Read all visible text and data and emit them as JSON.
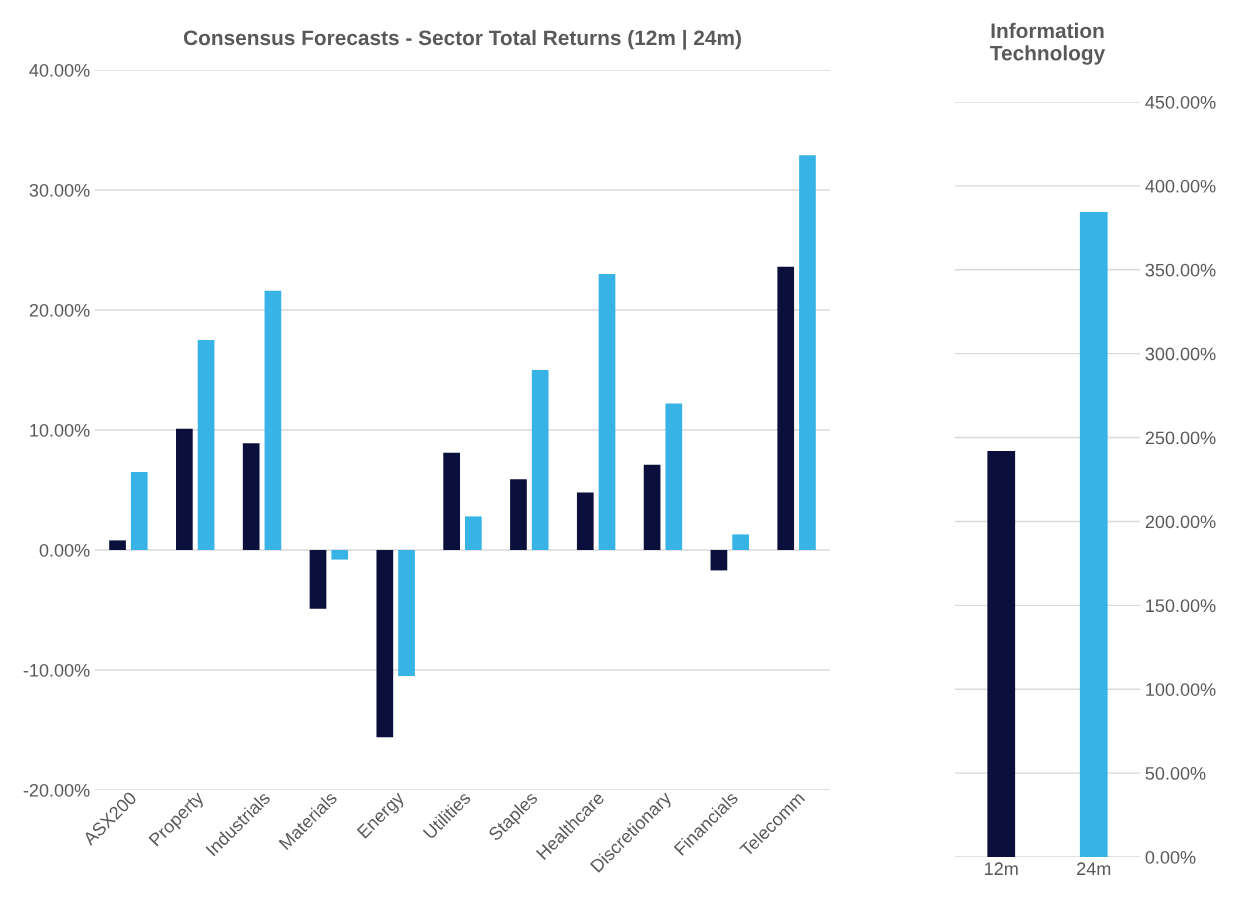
{
  "chart_data": [
    {
      "type": "bar",
      "title": "Consensus Forecasts - Sector Total Returns (12m | 24m)",
      "categories": [
        "ASX200",
        "Property",
        "Industrials",
        "Materials",
        "Energy",
        "Utilities",
        "Staples",
        "Healthcare",
        "Discretionary",
        "Financials",
        "Telecomm"
      ],
      "series": [
        {
          "color": "#0a0f3c",
          "values": [
            0.8,
            10.1,
            8.9,
            -4.9,
            -15.6,
            8.1,
            5.9,
            4.8,
            7.1,
            -1.7,
            23.6
          ]
        },
        {
          "color": "#38b3e6",
          "values": [
            6.5,
            17.5,
            21.6,
            -0.8,
            -10.5,
            2.8,
            15.0,
            23.0,
            12.2,
            1.3,
            32.9
          ]
        }
      ],
      "ylim": [
        -20,
        40
      ],
      "yticks": [
        {
          "value": -20,
          "label": "-20.00%"
        },
        {
          "value": -10,
          "label": "-10.00%"
        },
        {
          "value": 0,
          "label": "0.00%"
        },
        {
          "value": 10,
          "label": "10.00%"
        },
        {
          "value": 20,
          "label": "20.00%"
        },
        {
          "value": 30,
          "label": "30.00%"
        },
        {
          "value": 40,
          "label": "40.00%"
        }
      ],
      "grid": "y",
      "legend": false
    },
    {
      "type": "bar",
      "title": "Information\nTechnology",
      "categories": [
        "12m",
        "24m"
      ],
      "values": [
        242,
        384.5
      ],
      "colors": [
        "#0a0f3c",
        "#38b3e6"
      ],
      "ylim": [
        0,
        450
      ],
      "yticks": [
        {
          "value": 0,
          "label": "0.00%"
        },
        {
          "value": 50,
          "label": "50.00%"
        },
        {
          "value": 100,
          "label": "100.00%"
        },
        {
          "value": 150,
          "label": "150.00%"
        },
        {
          "value": 200,
          "label": "200.00%"
        },
        {
          "value": 250,
          "label": "250.00%"
        },
        {
          "value": 300,
          "label": "300.00%"
        },
        {
          "value": 350,
          "label": "350.00%"
        },
        {
          "value": 400,
          "label": "400.00%"
        },
        {
          "value": 450,
          "label": "450.00%"
        }
      ],
      "grid": "y",
      "legend": false
    }
  ]
}
